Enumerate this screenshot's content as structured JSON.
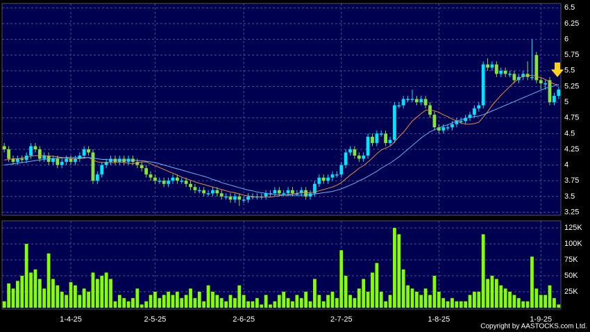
{
  "chart_data": {
    "type": "candlestick",
    "copyright": "Copyright by AASTOCKS.com Ltd.",
    "categories": [
      null,
      null,
      null,
      null,
      null,
      null,
      null,
      null,
      null,
      null,
      null,
      null,
      null,
      null,
      null,
      "1-4-25",
      null,
      null,
      null,
      null,
      null,
      null,
      null,
      null,
      null,
      null,
      null,
      null,
      null,
      null,
      null,
      null,
      null,
      null,
      "2-5-25",
      null,
      null,
      null,
      null,
      null,
      null,
      null,
      null,
      null,
      null,
      null,
      null,
      null,
      null,
      null,
      null,
      null,
      null,
      null,
      "2-6-25",
      null,
      null,
      null,
      null,
      null,
      null,
      null,
      null,
      null,
      null,
      null,
      null,
      null,
      null,
      null,
      null,
      null,
      null,
      null,
      null,
      null,
      "2-7-25",
      null,
      null,
      null,
      null,
      null,
      null,
      null,
      null,
      null,
      null,
      null,
      null,
      null,
      null,
      null,
      null,
      null,
      null,
      null,
      null,
      null,
      "1-8-25",
      null,
      null,
      null,
      null,
      null,
      null,
      null,
      null,
      null,
      null,
      null,
      null,
      null,
      null,
      null,
      null,
      null,
      null,
      null,
      null,
      null,
      null,
      "1-9-25",
      null,
      null,
      null,
      null
    ],
    "open": [
      4.3,
      4.25,
      4.1,
      4.05,
      4.1,
      4.08,
      4.15,
      4.3,
      4.25,
      4.1,
      4.15,
      4.05,
      4.1,
      4.0,
      4.05,
      4.1,
      4.05,
      4.1,
      4.15,
      4.25,
      4.2,
      3.75,
      3.85,
      4.0,
      4.05,
      4.1,
      4.05,
      4.1,
      4.05,
      4.1,
      4.05,
      4.0,
      3.95,
      3.85,
      3.8,
      3.75,
      3.75,
      3.7,
      3.75,
      3.8,
      3.75,
      3.75,
      3.7,
      3.65,
      3.6,
      3.6,
      3.55,
      3.55,
      3.6,
      3.55,
      3.5,
      3.5,
      3.45,
      3.5,
      3.45,
      3.45,
      3.5,
      3.5,
      3.5,
      3.5,
      3.55,
      3.55,
      3.6,
      3.55,
      3.55,
      3.6,
      3.55,
      3.55,
      3.6,
      3.5,
      3.55,
      3.7,
      3.8,
      3.75,
      3.8,
      3.85,
      3.85,
      4.0,
      4.2,
      4.25,
      4.15,
      4.1,
      4.15,
      4.45,
      4.35,
      4.5,
      4.5,
      4.35,
      4.4,
      4.95,
      4.95,
      5.05,
      5.05,
      5.05,
      5.0,
      5.05,
      4.95,
      4.8,
      4.6,
      4.55,
      4.6,
      4.6,
      4.65,
      4.7,
      4.7,
      4.75,
      4.8,
      4.9,
      4.95,
      5.6,
      5.55,
      5.6,
      5.45,
      5.5,
      5.45,
      5.45,
      5.35,
      5.4,
      5.45,
      5.4,
      5.75,
      5.35,
      5.3,
      5.35,
      5.0,
      5.1
    ],
    "high": [
      4.35,
      4.3,
      4.15,
      4.15,
      4.15,
      4.2,
      4.35,
      4.35,
      4.3,
      4.2,
      4.2,
      4.15,
      4.15,
      4.1,
      4.15,
      4.15,
      4.15,
      4.2,
      4.3,
      4.3,
      4.25,
      3.9,
      4.05,
      4.1,
      4.15,
      4.15,
      4.15,
      4.15,
      4.15,
      4.15,
      4.1,
      4.05,
      4.0,
      3.9,
      3.85,
      3.8,
      3.8,
      3.8,
      3.85,
      3.85,
      3.8,
      3.8,
      3.75,
      3.7,
      3.65,
      3.65,
      3.6,
      3.65,
      3.65,
      3.6,
      3.55,
      3.55,
      3.55,
      3.55,
      3.5,
      3.55,
      3.55,
      3.55,
      3.55,
      3.6,
      3.6,
      3.65,
      3.65,
      3.6,
      3.65,
      3.65,
      3.6,
      3.65,
      3.65,
      3.6,
      3.75,
      3.85,
      3.85,
      3.85,
      3.9,
      3.9,
      4.05,
      4.25,
      4.3,
      4.3,
      4.2,
      4.2,
      4.5,
      4.5,
      4.55,
      4.55,
      4.55,
      4.45,
      5.0,
      5.0,
      5.1,
      5.1,
      5.2,
      5.1,
      5.1,
      5.1,
      5.0,
      4.85,
      4.65,
      4.65,
      4.65,
      4.7,
      4.75,
      4.75,
      4.8,
      4.85,
      4.95,
      5.0,
      5.65,
      5.7,
      5.65,
      5.65,
      5.55,
      5.55,
      5.5,
      5.5,
      5.45,
      5.5,
      5.65,
      6.0,
      5.8,
      5.4,
      5.35,
      5.4,
      5.15,
      5.25
    ],
    "low": [
      4.2,
      4.05,
      4.0,
      4.0,
      4.03,
      4.03,
      4.1,
      4.2,
      4.05,
      4.05,
      4.0,
      4.0,
      3.95,
      3.95,
      4.0,
      4.0,
      4.0,
      4.05,
      4.1,
      4.15,
      3.7,
      3.7,
      3.8,
      3.95,
      4.0,
      4.0,
      4.0,
      4.0,
      4.0,
      4.0,
      3.95,
      3.9,
      3.8,
      3.75,
      3.7,
      3.7,
      3.65,
      3.65,
      3.7,
      3.7,
      3.7,
      3.65,
      3.6,
      3.55,
      3.55,
      3.5,
      3.5,
      3.5,
      3.5,
      3.45,
      3.45,
      3.4,
      3.4,
      3.35,
      3.4,
      3.4,
      3.45,
      3.45,
      3.45,
      3.45,
      3.5,
      3.5,
      3.5,
      3.5,
      3.5,
      3.5,
      3.5,
      3.5,
      3.45,
      3.45,
      3.5,
      3.65,
      3.7,
      3.7,
      3.75,
      3.8,
      3.8,
      3.95,
      4.15,
      4.1,
      4.05,
      4.05,
      4.1,
      4.3,
      4.3,
      4.45,
      4.3,
      4.3,
      4.35,
      4.9,
      4.9,
      5.0,
      5.0,
      4.95,
      4.95,
      4.9,
      4.75,
      4.55,
      4.5,
      4.5,
      4.55,
      4.55,
      4.6,
      4.65,
      4.65,
      4.7,
      4.75,
      4.85,
      4.9,
      5.5,
      5.5,
      5.4,
      5.4,
      5.4,
      5.4,
      5.3,
      5.3,
      5.35,
      5.35,
      5.35,
      5.3,
      5.2,
      5.2,
      4.95,
      4.95,
      5.05
    ],
    "close": [
      4.25,
      4.1,
      4.05,
      4.1,
      4.08,
      4.15,
      4.3,
      4.25,
      4.1,
      4.15,
      4.05,
      4.1,
      4.0,
      4.05,
      4.1,
      4.05,
      4.1,
      4.15,
      4.25,
      4.2,
      3.75,
      3.85,
      4.0,
      4.05,
      4.1,
      4.05,
      4.1,
      4.05,
      4.1,
      4.05,
      4.0,
      3.95,
      3.85,
      3.8,
      3.75,
      3.75,
      3.7,
      3.75,
      3.8,
      3.75,
      3.75,
      3.7,
      3.65,
      3.6,
      3.6,
      3.55,
      3.55,
      3.6,
      3.55,
      3.5,
      3.5,
      3.45,
      3.5,
      3.45,
      3.45,
      3.5,
      3.5,
      3.5,
      3.5,
      3.55,
      3.55,
      3.6,
      3.55,
      3.55,
      3.6,
      3.55,
      3.55,
      3.6,
      3.5,
      3.55,
      3.7,
      3.8,
      3.75,
      3.8,
      3.85,
      3.85,
      4.0,
      4.2,
      4.25,
      4.15,
      4.1,
      4.15,
      4.45,
      4.35,
      4.5,
      4.5,
      4.35,
      4.4,
      4.95,
      4.95,
      5.05,
      5.05,
      5.05,
      5.0,
      5.05,
      4.95,
      4.8,
      4.6,
      4.55,
      4.6,
      4.6,
      4.65,
      4.7,
      4.7,
      4.75,
      4.8,
      4.9,
      4.95,
      5.6,
      5.55,
      5.6,
      5.45,
      5.5,
      5.45,
      5.45,
      5.35,
      5.4,
      5.45,
      5.4,
      5.4,
      5.35,
      5.3,
      5.3,
      5.0,
      5.1,
      5.2
    ],
    "up_color": "#00e5ff",
    "down_color": "#86e33a",
    "ylim": [
      3.2,
      6.57
    ],
    "yticks": [
      6.5,
      6.25,
      6,
      5.75,
      5.5,
      5.25,
      5,
      4.75,
      4.5,
      4.25,
      4,
      3.75,
      3.5,
      3.25
    ],
    "grid": true,
    "moving_averages": [
      {
        "color": "#f08a3c",
        "values": [
          4.08,
          4.09,
          4.1,
          4.1,
          4.11,
          4.12,
          4.14,
          4.15,
          4.15,
          4.15,
          4.14,
          4.14,
          4.13,
          4.12,
          4.11,
          4.1,
          4.1,
          4.1,
          4.11,
          4.12,
          4.08,
          4.05,
          4.04,
          4.04,
          4.04,
          4.04,
          4.05,
          4.04,
          4.03,
          4.02,
          4.04,
          4.05,
          4.05,
          4.02,
          3.99,
          3.96,
          3.93,
          3.9,
          3.87,
          3.84,
          3.81,
          3.78,
          3.76,
          3.73,
          3.71,
          3.69,
          3.67,
          3.65,
          3.63,
          3.61,
          3.59,
          3.57,
          3.56,
          3.54,
          3.52,
          3.51,
          3.5,
          3.49,
          3.49,
          3.49,
          3.49,
          3.5,
          3.51,
          3.52,
          3.53,
          3.54,
          3.55,
          3.56,
          3.56,
          3.56,
          3.57,
          3.59,
          3.61,
          3.63,
          3.65,
          3.68,
          3.72,
          3.78,
          3.84,
          3.89,
          3.95,
          3.99,
          4.05,
          4.11,
          4.18,
          4.24,
          4.27,
          4.3,
          4.37,
          4.45,
          4.52,
          4.61,
          4.7,
          4.76,
          4.82,
          4.87,
          4.88,
          4.86,
          4.84,
          4.8,
          4.77,
          4.73,
          4.7,
          4.67,
          4.65,
          4.65,
          4.66,
          4.68,
          4.76,
          4.85,
          4.95,
          5.03,
          5.11,
          5.18,
          5.25,
          5.32,
          5.37,
          5.42,
          5.42,
          5.43,
          5.41,
          5.39,
          5.36,
          5.32,
          5.29,
          5.27
        ]
      },
      {
        "color": "#5fb8f0",
        "values": [
          4.0,
          4.01,
          4.02,
          4.03,
          4.04,
          4.05,
          4.06,
          4.07,
          4.08,
          4.09,
          4.1,
          4.1,
          4.11,
          4.11,
          4.12,
          4.12,
          4.12,
          4.12,
          4.12,
          4.12,
          4.11,
          4.1,
          4.09,
          4.09,
          4.08,
          4.08,
          4.08,
          4.08,
          4.08,
          4.08,
          4.07,
          4.07,
          4.06,
          4.05,
          4.04,
          4.02,
          4.0,
          3.98,
          3.96,
          3.94,
          3.92,
          3.9,
          3.88,
          3.86,
          3.84,
          3.82,
          3.8,
          3.77,
          3.75,
          3.72,
          3.7,
          3.68,
          3.66,
          3.64,
          3.62,
          3.6,
          3.59,
          3.57,
          3.56,
          3.55,
          3.54,
          3.53,
          3.53,
          3.52,
          3.52,
          3.52,
          3.52,
          3.52,
          3.52,
          3.53,
          3.54,
          3.55,
          3.56,
          3.57,
          3.58,
          3.6,
          3.62,
          3.65,
          3.68,
          3.71,
          3.75,
          3.78,
          3.82,
          3.86,
          3.9,
          3.95,
          3.99,
          4.03,
          4.08,
          4.13,
          4.19,
          4.25,
          4.31,
          4.37,
          4.43,
          4.48,
          4.53,
          4.56,
          4.59,
          4.62,
          4.64,
          4.67,
          4.7,
          4.72,
          4.74,
          4.76,
          4.77,
          4.78,
          4.8,
          4.83,
          4.86,
          4.89,
          4.92,
          4.95,
          4.98,
          5.01,
          5.04,
          5.07,
          5.1,
          5.13,
          5.16,
          5.19,
          5.22,
          5.24,
          5.26,
          5.28
        ]
      }
    ],
    "volume": {
      "color": "#84ff00",
      "ylim": [
        0,
        136000
      ],
      "yticks": [
        {
          "value": 125000,
          "label": "125K"
        },
        {
          "value": 100000,
          "label": "100K"
        },
        {
          "value": 75000,
          "label": "75K"
        },
        {
          "value": 50000,
          "label": "50K"
        },
        {
          "value": 25000,
          "label": "25K"
        }
      ],
      "values": [
        10000,
        38000,
        30000,
        42000,
        50000,
        100000,
        55000,
        60000,
        45000,
        30000,
        85000,
        45000,
        35000,
        25000,
        20000,
        40000,
        35000,
        20000,
        30000,
        25000,
        55000,
        45000,
        50000,
        55000,
        45000,
        10000,
        20000,
        15000,
        10000,
        15000,
        30000,
        5000,
        10000,
        20000,
        25000,
        15000,
        20000,
        25000,
        20000,
        25000,
        15000,
        20000,
        30000,
        15000,
        25000,
        10000,
        35000,
        25000,
        20000,
        15000,
        10000,
        20000,
        15000,
        35000,
        20000,
        10000,
        10000,
        15000,
        5000,
        20000,
        5000,
        10000,
        20000,
        25000,
        15000,
        10000,
        20000,
        15000,
        25000,
        10000,
        45000,
        20000,
        10000,
        20000,
        25000,
        15000,
        90000,
        50000,
        20000,
        15000,
        30000,
        45000,
        25000,
        55000,
        70000,
        25000,
        10000,
        20000,
        125000,
        115000,
        60000,
        35000,
        30000,
        25000,
        20000,
        30000,
        20000,
        50000,
        25000,
        15000,
        10000,
        15000,
        10000,
        10000,
        10000,
        20000,
        25000,
        25000,
        115000,
        45000,
        50000,
        45000,
        35000,
        30000,
        25000,
        20000,
        15000,
        10000,
        10000,
        80000,
        30000,
        20000,
        20000,
        35000,
        15000,
        5000
      ]
    }
  }
}
